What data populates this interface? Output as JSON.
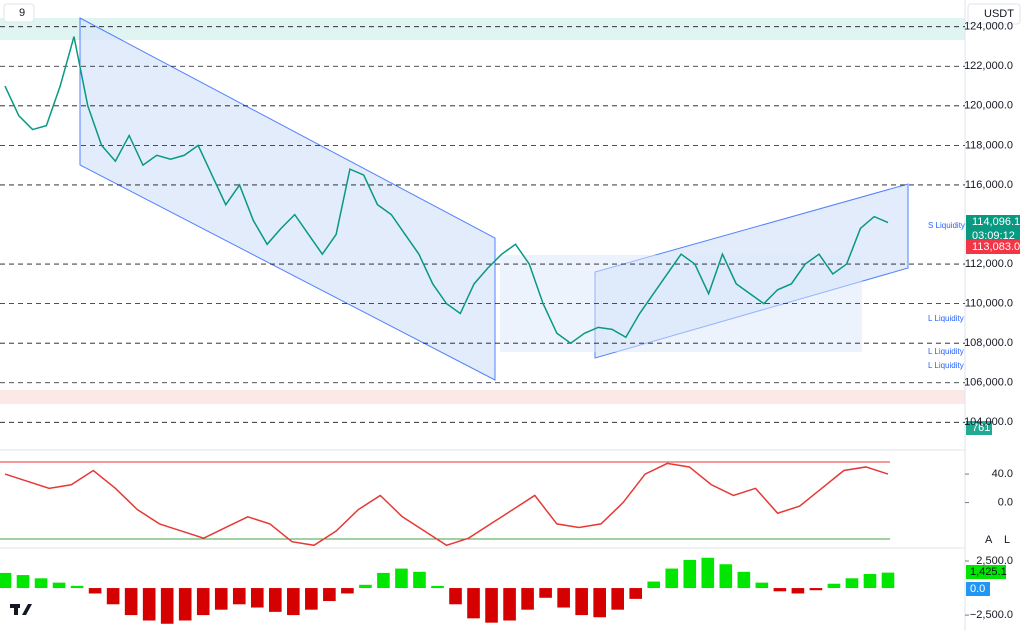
{
  "ui": {
    "interval": "9",
    "currency": "USDT",
    "last_price": "114,096.1",
    "countdown": "03:09:12",
    "ma_price": "113,083.0",
    "volume": "761",
    "macd_value": "1,425.1",
    "signal_value": "0.0",
    "btn_auto": "A",
    "btn_log": "L",
    "zones": [
      "S Liquidity",
      "L Liquidity",
      "L Liquidity",
      "L Liquidity"
    ]
  },
  "chart_data": [
    {
      "type": "line",
      "color": "#089981",
      "grid": true,
      "values": [
        121000,
        119500,
        118800,
        119000,
        121000,
        123500,
        120000,
        118000,
        117200,
        118500,
        117000,
        117500,
        117300,
        117500,
        118000,
        116500,
        115000,
        116000,
        114200,
        113000,
        113800,
        114500,
        113500,
        112500,
        113500,
        116800,
        116500,
        115000,
        114500,
        113500,
        112500,
        111000,
        110000,
        109500,
        111000,
        111800,
        112500,
        113000,
        112000,
        110000,
        108500,
        108000,
        108500,
        108800,
        108700,
        108300,
        109500,
        110500,
        111500,
        112500,
        112000,
        110500,
        112500,
        111000,
        110500,
        110000,
        110700,
        111000,
        112000,
        112500,
        111500,
        112000,
        113800,
        114400,
        114100
      ],
      "ylim": [
        102600,
        125350
      ],
      "yticks": [
        {
          "value": 104000,
          "label": "104,000.0"
        },
        {
          "value": 106000,
          "label": "106,000.0"
        },
        {
          "value": 108000,
          "label": "108,000.0"
        },
        {
          "value": 110000,
          "label": "110,000.0"
        },
        {
          "value": 112000,
          "label": "112,000.0"
        },
        {
          "value": 116000,
          "label": "116,000.0"
        },
        {
          "value": 118000,
          "label": "118,000.0"
        },
        {
          "value": 120000,
          "label": "120,000.0"
        },
        {
          "value": 122000,
          "label": "122,000.0"
        },
        {
          "value": 124000,
          "label": "124,000.0"
        }
      ]
    },
    {
      "type": "line",
      "color": "#e53935",
      "grid": false,
      "values": [
        40,
        30,
        20,
        25,
        45,
        20,
        -10,
        -30,
        -40,
        -50,
        -35,
        -20,
        -30,
        -55,
        -60,
        -40,
        -10,
        10,
        -20,
        -40,
        -60,
        -50,
        -30,
        -10,
        10,
        -30,
        -35,
        -30,
        0,
        40,
        55,
        50,
        25,
        10,
        20,
        -15,
        -5,
        20,
        45,
        50,
        40
      ],
      "ylim": [
        -61,
        71
      ],
      "yticks": [
        {
          "value": 0,
          "label": "0.0"
        },
        {
          "value": 40,
          "label": "40.0"
        }
      ]
    },
    {
      "type": "bar",
      "color": "#00e600",
      "negative_color": "#d50000",
      "grid": false,
      "values": [
        1400,
        1200,
        900,
        500,
        200,
        -500,
        -1500,
        -2500,
        -3000,
        -3300,
        -3000,
        -2500,
        -2000,
        -1500,
        -1800,
        -2200,
        -2500,
        -2000,
        -1200,
        -500,
        300,
        1400,
        1800,
        1500,
        200,
        -1500,
        -2800,
        -3200,
        -3000,
        -2000,
        -900,
        -1800,
        -2500,
        -2700,
        -2000,
        -1000,
        600,
        1800,
        2600,
        2800,
        2200,
        1500,
        500,
        -300,
        -500,
        -200,
        400,
        900,
        1300,
        1425
      ],
      "ylim": [
        -3600,
        3240
      ],
      "yticks": [
        {
          "value": -2500,
          "label": "−2,500.0"
        },
        {
          "value": 2500,
          "label": "2,500.0"
        }
      ]
    }
  ]
}
